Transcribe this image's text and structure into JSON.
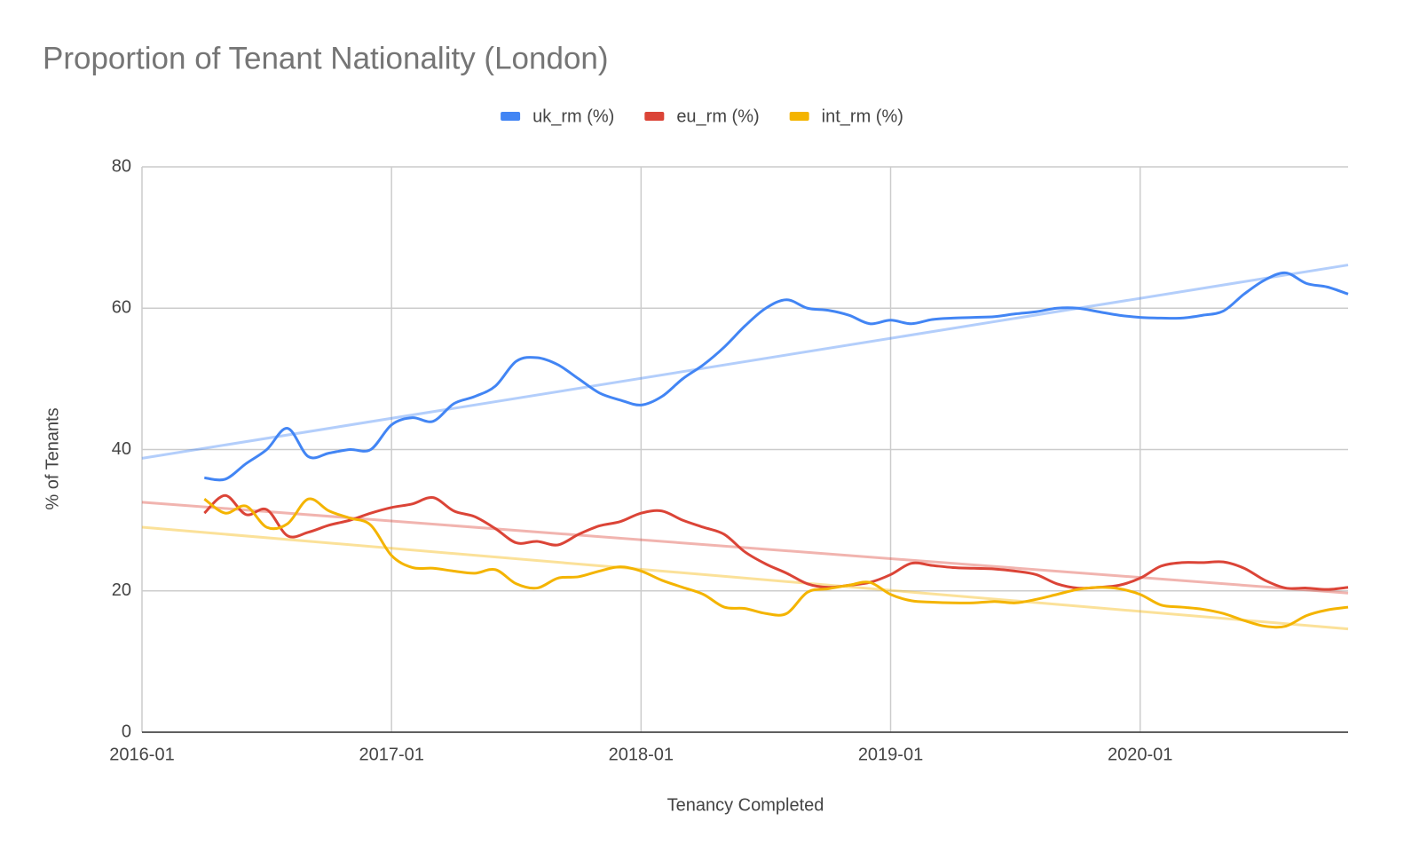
{
  "chart_data": {
    "type": "line",
    "title": "Proportion of Tenant Nationality (London)",
    "xlabel": "Tenancy Completed",
    "ylabel": "% of Tenants",
    "x": [
      "2016-04",
      "2016-05",
      "2016-06",
      "2016-07",
      "2016-08",
      "2016-09",
      "2016-10",
      "2016-11",
      "2016-12",
      "2017-01",
      "2017-02",
      "2017-03",
      "2017-04",
      "2017-05",
      "2017-06",
      "2017-07",
      "2017-08",
      "2017-09",
      "2017-10",
      "2017-11",
      "2017-12",
      "2018-01",
      "2018-02",
      "2018-03",
      "2018-04",
      "2018-05",
      "2018-06",
      "2018-07",
      "2018-08",
      "2018-09",
      "2018-10",
      "2018-11",
      "2018-12",
      "2019-01",
      "2019-02",
      "2019-03",
      "2019-04",
      "2019-05",
      "2019-06",
      "2019-07",
      "2019-08",
      "2019-09",
      "2019-10",
      "2019-11",
      "2019-12",
      "2020-01",
      "2020-02",
      "2020-03",
      "2020-04",
      "2020-05",
      "2020-06",
      "2020-07",
      "2020-08",
      "2020-09",
      "2020-10",
      "2020-11"
    ],
    "series": [
      {
        "name": "uk_rm (%)",
        "color": "#4285f4",
        "trendline": true,
        "values": [
          36,
          35.8,
          38,
          40,
          43,
          39,
          39.5,
          40,
          40,
          43.5,
          44.5,
          44,
          46.5,
          47.5,
          49,
          52.5,
          53,
          52,
          50,
          48,
          47,
          46.3,
          47.5,
          50,
          52,
          54.5,
          57.5,
          60,
          61.2,
          60,
          59.7,
          59,
          57.8,
          58.3,
          57.8,
          58.4,
          58.6,
          58.7,
          58.8,
          59.2,
          59.5,
          60,
          60,
          59.5,
          59,
          58.7,
          58.6,
          58.6,
          59,
          59.6,
          62,
          64,
          65,
          63.5,
          63,
          62
        ]
      },
      {
        "name": "eu_rm (%)",
        "color": "#db4437",
        "trendline": true,
        "values": [
          31,
          33.5,
          30.8,
          31.5,
          27.8,
          28.3,
          29.3,
          30,
          31,
          31.8,
          32.3,
          33.2,
          31.3,
          30.5,
          28.8,
          26.8,
          27,
          26.5,
          28,
          29.2,
          29.8,
          31,
          31.3,
          30,
          29,
          28,
          25.5,
          23.8,
          22.5,
          21,
          20.5,
          20.8,
          21.2,
          22.3,
          23.9,
          23.6,
          23.3,
          23.2,
          23.1,
          22.8,
          22.3,
          21,
          20.4,
          20.5,
          20.8,
          21.8,
          23.5,
          24,
          24,
          24.1,
          23.2,
          21.5,
          20.4,
          20.4,
          20.2,
          20.5
        ]
      },
      {
        "name": "int_rm (%)",
        "color": "#f4b400",
        "trendline": true,
        "values": [
          33,
          31,
          32,
          29,
          29.5,
          33,
          31.3,
          30.3,
          29.3,
          25,
          23.3,
          23.2,
          22.8,
          22.5,
          23,
          21,
          20.4,
          21.8,
          22,
          22.8,
          23.4,
          22.8,
          21.5,
          20.5,
          19.5,
          17.7,
          17.5,
          16.8,
          16.8,
          19.8,
          20.3,
          20.8,
          21.2,
          19.5,
          18.6,
          18.4,
          18.3,
          18.3,
          18.5,
          18.3,
          18.8,
          19.5,
          20.2,
          20.5,
          20.3,
          19.5,
          18,
          17.7,
          17.4,
          16.8,
          15.8,
          15,
          15,
          16.5,
          17.3,
          17.7
        ]
      }
    ],
    "xlim": [
      "2016-01",
      "2020-11"
    ],
    "xticks": [
      "2016-01",
      "2017-01",
      "2018-01",
      "2019-01",
      "2020-01"
    ],
    "ylim": [
      0,
      80
    ],
    "yticks": [
      0,
      20,
      40,
      60,
      80
    ],
    "grid": true,
    "legend": "top"
  }
}
